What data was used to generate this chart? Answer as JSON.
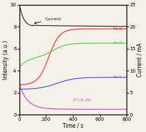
{
  "title": "",
  "xlabel": "Time / s",
  "ylabel_left": "Intensity (a.u.)",
  "ylabel_right": "Current / mA",
  "xlim": [
    0,
    800
  ],
  "ylim_left": [
    0,
    10
  ],
  "ylim_right": [
    0,
    25
  ],
  "yticks_left": [
    0,
    2,
    4,
    6,
    8,
    10
  ],
  "yticks_right": [
    0,
    5,
    10,
    15,
    20,
    25
  ],
  "xticks": [
    0,
    200,
    400,
    600,
    800
  ],
  "bg_color": "#f5f0e8",
  "series": {
    "Current": {
      "color": "#222222",
      "label": "Current"
    },
    "FeII": {
      "color": "#ff2222",
      "label": "Fe II"
    },
    "ArII": {
      "color": "#44cc44",
      "label": "Ar II"
    },
    "ArI": {
      "color": "#4444ff",
      "label": "Ar I"
    },
    "OI": {
      "color": "#cc44cc",
      "label": "O I X 20"
    }
  }
}
